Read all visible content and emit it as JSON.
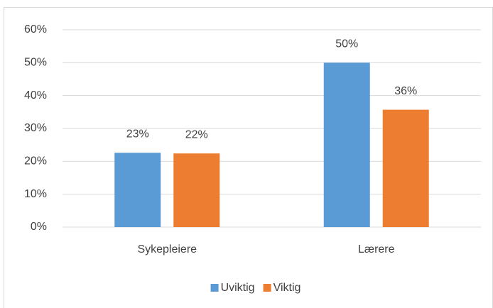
{
  "chart_data": {
    "type": "bar",
    "categories": [
      "Sykepleiere",
      "Lærere"
    ],
    "series": [
      {
        "name": "Uviktig",
        "color": "#5b9bd5",
        "values": [
          22.6,
          50
        ],
        "value_labels": [
          "23%",
          "50%"
        ]
      },
      {
        "name": "Viktig",
        "color": "#ed7d31",
        "values": [
          22.4,
          35.7
        ],
        "value_labels": [
          "22%",
          "36%"
        ]
      }
    ],
    "ylim": [
      0,
      60
    ],
    "yticks": [
      {
        "value": 0,
        "label": "0%"
      },
      {
        "value": 10,
        "label": "10%"
      },
      {
        "value": 20,
        "label": "20%"
      },
      {
        "value": 30,
        "label": "30%"
      },
      {
        "value": 40,
        "label": "40%"
      },
      {
        "value": 50,
        "label": "50%"
      },
      {
        "value": 60,
        "label": "60%"
      }
    ],
    "grid": true,
    "legend": "bottom"
  }
}
